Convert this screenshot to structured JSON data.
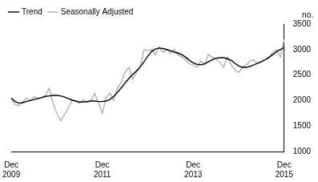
{
  "chart_data": {
    "type": "line",
    "y_label": "no.",
    "categories": [
      "Dec 2009",
      null,
      null,
      null,
      null,
      null,
      null,
      null,
      null,
      null,
      null,
      null,
      null,
      null,
      null,
      null,
      null,
      null,
      null,
      null,
      null,
      null,
      null,
      null,
      "Dec 2011",
      null,
      null,
      null,
      null,
      null,
      null,
      null,
      null,
      null,
      null,
      null,
      null,
      null,
      null,
      null,
      null,
      null,
      null,
      null,
      null,
      null,
      null,
      null,
      "Dec 2013",
      null,
      null,
      null,
      null,
      null,
      null,
      null,
      null,
      null,
      null,
      null,
      null,
      null,
      null,
      null,
      null,
      null,
      null,
      null,
      null,
      null,
      null,
      null,
      "Dec 2015"
    ],
    "series": [
      {
        "name": "Trend",
        "color": "#000000",
        "values": [
          2050,
          1980,
          1950,
          1960,
          1980,
          2000,
          2020,
          2040,
          2060,
          2080,
          2090,
          2100,
          2100,
          2090,
          2070,
          2040,
          2010,
          1990,
          1970,
          1970,
          1980,
          1990,
          1990,
          1980,
          1980,
          1990,
          2020,
          2080,
          2160,
          2250,
          2340,
          2430,
          2510,
          2580,
          2660,
          2760,
          2870,
          2960,
          3010,
          3030,
          3020,
          3000,
          2980,
          2950,
          2930,
          2900,
          2850,
          2790,
          2740,
          2710,
          2700,
          2720,
          2760,
          2800,
          2830,
          2840,
          2840,
          2820,
          2790,
          2730,
          2680,
          2650,
          2650,
          2670,
          2700,
          2730,
          2760,
          2800,
          2850,
          2900,
          2960,
          3000,
          3040
        ]
      },
      {
        "name": "Seasonally Adjusted",
        "color": "#b0b0b0",
        "values": [
          2030,
          1920,
          1900,
          1970,
          2050,
          1990,
          2080,
          2030,
          2050,
          2100,
          2240,
          1950,
          1750,
          1600,
          1720,
          1850,
          2000,
          1990,
          1950,
          2020,
          1960,
          2000,
          2140,
          1950,
          1750,
          2050,
          2150,
          2000,
          2250,
          2350,
          2550,
          2650,
          2420,
          2550,
          2650,
          3000,
          2980,
          3000,
          2900,
          3050,
          2950,
          3000,
          2930,
          3000,
          2900,
          2850,
          2800,
          2720,
          2700,
          2650,
          2780,
          2700,
          2900,
          2850,
          2820,
          2750,
          2650,
          2850,
          2700,
          2600,
          2550,
          2650,
          2700,
          2780,
          2800,
          2720,
          2780,
          2800,
          2830,
          2950,
          3000,
          2850,
          3200
        ]
      }
    ],
    "ylim": [
      1000,
      3500
    ],
    "yticks": [
      1000,
      1500,
      2000,
      2500,
      3000,
      3500
    ],
    "grid": false,
    "legend": "upper left"
  }
}
